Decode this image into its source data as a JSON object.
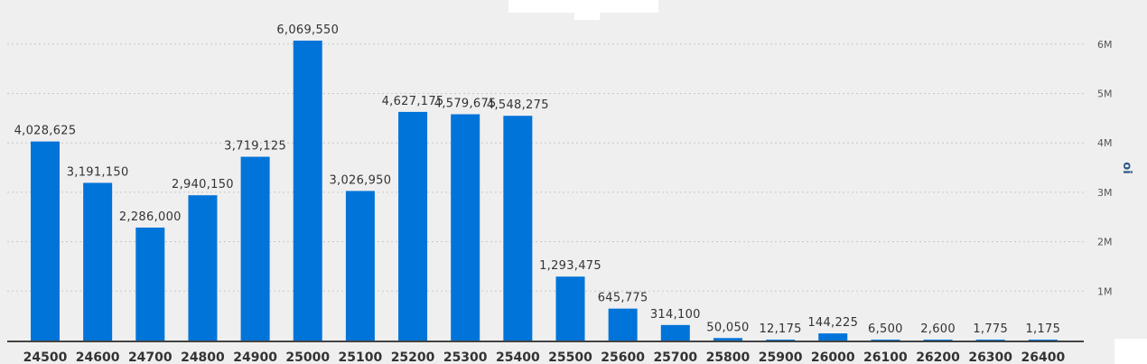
{
  "chart_data": {
    "type": "bar",
    "categories": [
      "24500",
      "24600",
      "24700",
      "24800",
      "24900",
      "25000",
      "25100",
      "25200",
      "25300",
      "25400",
      "25500",
      "25600",
      "25700",
      "25800",
      "25900",
      "26000",
      "26100",
      "26200",
      "26300",
      "26400"
    ],
    "values": [
      4028625,
      3191150,
      2286000,
      2940150,
      3719125,
      6069550,
      3026950,
      4627175,
      4579675,
      4548275,
      1293475,
      645775,
      314100,
      50050,
      12175,
      144225,
      6500,
      2600,
      1775,
      1175
    ],
    "value_labels": [
      "4,028,625",
      "3,191,150",
      "2,286,000",
      "2,940,150",
      "3,719,125",
      "6,069,550",
      "3,026,950",
      "4,627,175",
      "4,579,675",
      "4,548,275",
      "1,293,475",
      "645,775",
      "314,100",
      "50,050",
      "12,175",
      "144,225",
      "6,500",
      "2,600",
      "1,775",
      "1,175"
    ],
    "title": "",
    "xlabel": "",
    "ylabel": "oi",
    "ylim": [
      0,
      6500000
    ],
    "yticks": [
      1000000,
      2000000,
      3000000,
      4000000,
      5000000,
      6000000
    ],
    "ytick_labels": [
      "1M",
      "2M",
      "3M",
      "4M",
      "5M",
      "6M"
    ],
    "y_axis_side": "right",
    "grid": true,
    "bar_color": "#0074d9"
  }
}
